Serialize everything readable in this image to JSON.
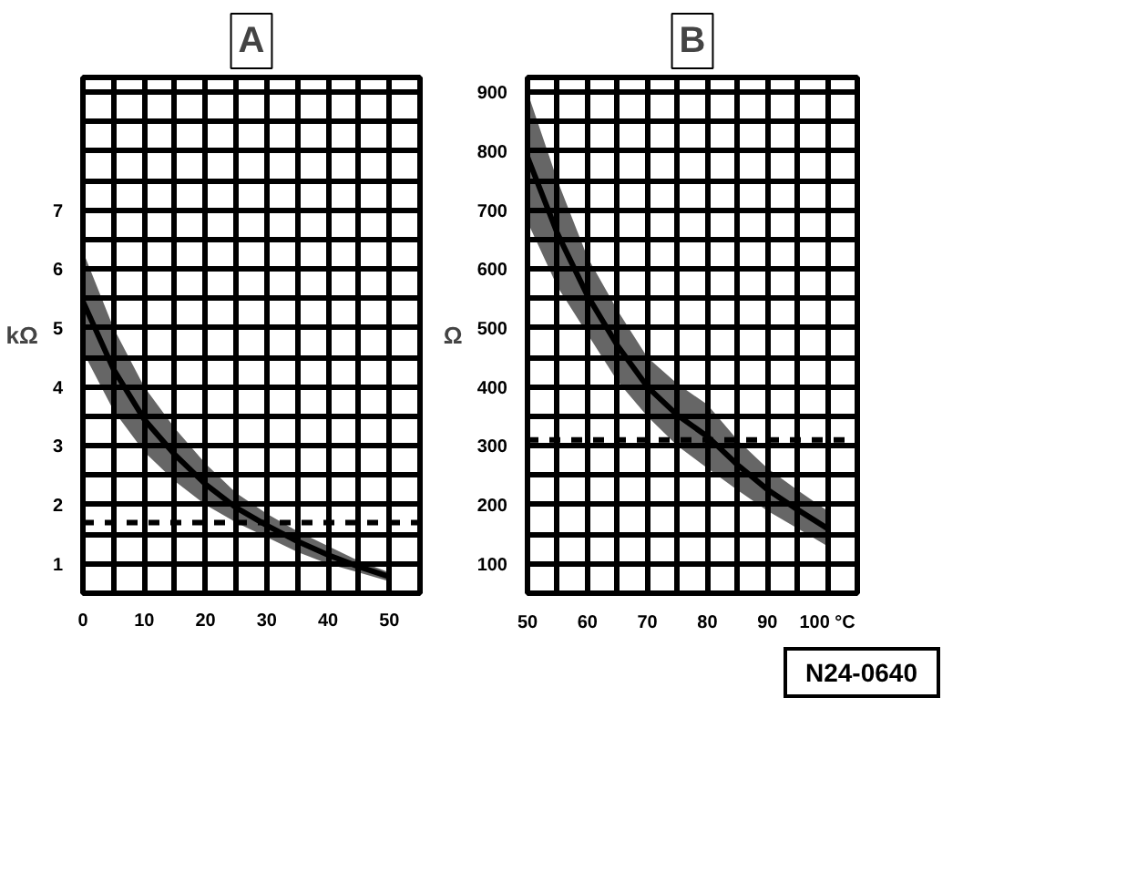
{
  "chart_data": [
    {
      "type": "line",
      "title": "A",
      "ylabel": "kΩ",
      "x": [
        0,
        5,
        10,
        15,
        20,
        25,
        30,
        35,
        40,
        45,
        50
      ],
      "series": [
        {
          "color": "#000000",
          "values": [
            5.45,
            4.3,
            3.45,
            2.85,
            2.35,
            1.95,
            1.65,
            1.38,
            1.15,
            0.95,
            0.78
          ],
          "lower": [
            4.6,
            3.6,
            2.9,
            2.4,
            2.0,
            1.7,
            1.45,
            1.2,
            1.0,
            0.85,
            0.7
          ],
          "upper": [
            6.3,
            5.0,
            4.0,
            3.3,
            2.7,
            2.2,
            1.85,
            1.55,
            1.3,
            1.05,
            0.85
          ]
        }
      ],
      "xlim": [
        0,
        55
      ],
      "xticks": [
        0,
        {
          "value": 5,
          "label": null
        },
        10,
        {
          "value": 15,
          "label": null
        },
        20,
        {
          "value": 25,
          "label": null
        },
        30,
        {
          "value": 35,
          "label": null
        },
        40,
        {
          "value": 45,
          "label": null
        },
        50,
        {
          "value": 55,
          "label": null
        }
      ],
      "ylim": [
        0.5,
        9.25
      ],
      "yticks": [
        {
          "value": 0.5,
          "label": null
        },
        1,
        {
          "value": 1.5,
          "label": null
        },
        2,
        {
          "value": 2.5,
          "label": null
        },
        3,
        {
          "value": 3.5,
          "label": null
        },
        4,
        {
          "value": 4.5,
          "label": null
        },
        5,
        {
          "value": 5.5,
          "label": null
        },
        6,
        {
          "value": 6.5,
          "label": null
        },
        7,
        {
          "value": 7.5,
          "label": null
        },
        {
          "value": 8,
          "label": null
        },
        {
          "value": 8.5,
          "label": null
        },
        {
          "value": 9,
          "label": null
        }
      ],
      "grid": true,
      "ref_lines": [
        {
          "axis": "y",
          "value": 1.7,
          "line_style": "dashed"
        }
      ]
    },
    {
      "type": "line",
      "title": "B",
      "ylabel": "Ω",
      "x": [
        50,
        55,
        60,
        65,
        70,
        75,
        80,
        85,
        90,
        95,
        100
      ],
      "series": [
        {
          "color": "#000000",
          "values": [
            790,
            660,
            555,
            470,
            400,
            352,
            316,
            268,
            226,
            192,
            160
          ],
          "lower": [
            680,
            570,
            490,
            410,
            350,
            300,
            262,
            225,
            190,
            160,
            130
          ],
          "upper": [
            900,
            750,
            620,
            530,
            450,
            405,
            370,
            310,
            262,
            225,
            190
          ]
        }
      ],
      "xlim": [
        50,
        105
      ],
      "xticks": [
        50,
        {
          "value": 55,
          "label": null
        },
        60,
        {
          "value": 65,
          "label": null
        },
        70,
        {
          "value": 75,
          "label": null
        },
        80,
        {
          "value": 85,
          "label": null
        },
        90,
        {
          "value": 95,
          "label": null
        },
        {
          "value": 100,
          "label": "100 °C"
        },
        {
          "value": 105,
          "label": null
        }
      ],
      "ylim": [
        50,
        925
      ],
      "yticks": [
        {
          "value": 50,
          "label": null
        },
        100,
        {
          "value": 150,
          "label": null
        },
        200,
        {
          "value": 250,
          "label": null
        },
        300,
        {
          "value": 350,
          "label": null
        },
        400,
        {
          "value": 450,
          "label": null
        },
        500,
        {
          "value": 550,
          "label": null
        },
        600,
        {
          "value": 650,
          "label": null
        },
        700,
        {
          "value": 750,
          "label": null
        },
        800,
        {
          "value": 850,
          "label": null
        },
        900
      ],
      "grid": true,
      "ref_lines": [
        {
          "axis": "y",
          "value": 310,
          "line_style": "dashed"
        }
      ],
      "annotations": [
        "N24-0640"
      ]
    }
  ]
}
